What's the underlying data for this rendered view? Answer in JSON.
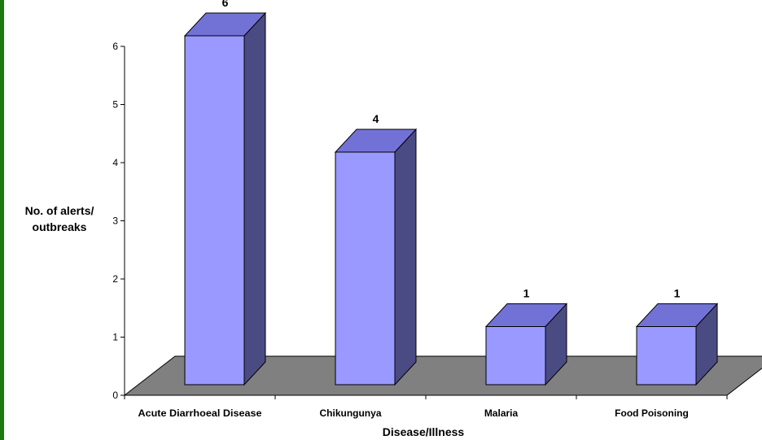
{
  "chart_data": {
    "type": "bar",
    "style": "3d",
    "categories": [
      "Acute Diarrhoeal Disease",
      "Chikungunya",
      "Malaria",
      "Food Poisoning"
    ],
    "values": [
      6,
      4,
      1,
      1
    ],
    "data_labels": [
      "6",
      "4",
      "1",
      "1"
    ],
    "title": "",
    "xlabel": "Disease/Illness",
    "ylabel": "No. of alerts/ outbreaks",
    "ylabel_lines": [
      "No. of alerts/",
      "outbreaks"
    ],
    "ylim": [
      0,
      6
    ],
    "yticks": [
      0,
      1,
      2,
      3,
      4,
      5,
      6
    ],
    "grid": false,
    "legend": "none",
    "colors": {
      "bar_front": "#9999ff",
      "bar_top": "#7272d6",
      "bar_side": "#4b4b84",
      "floor": "#808080",
      "frame_border": "#1a7a0e"
    }
  }
}
